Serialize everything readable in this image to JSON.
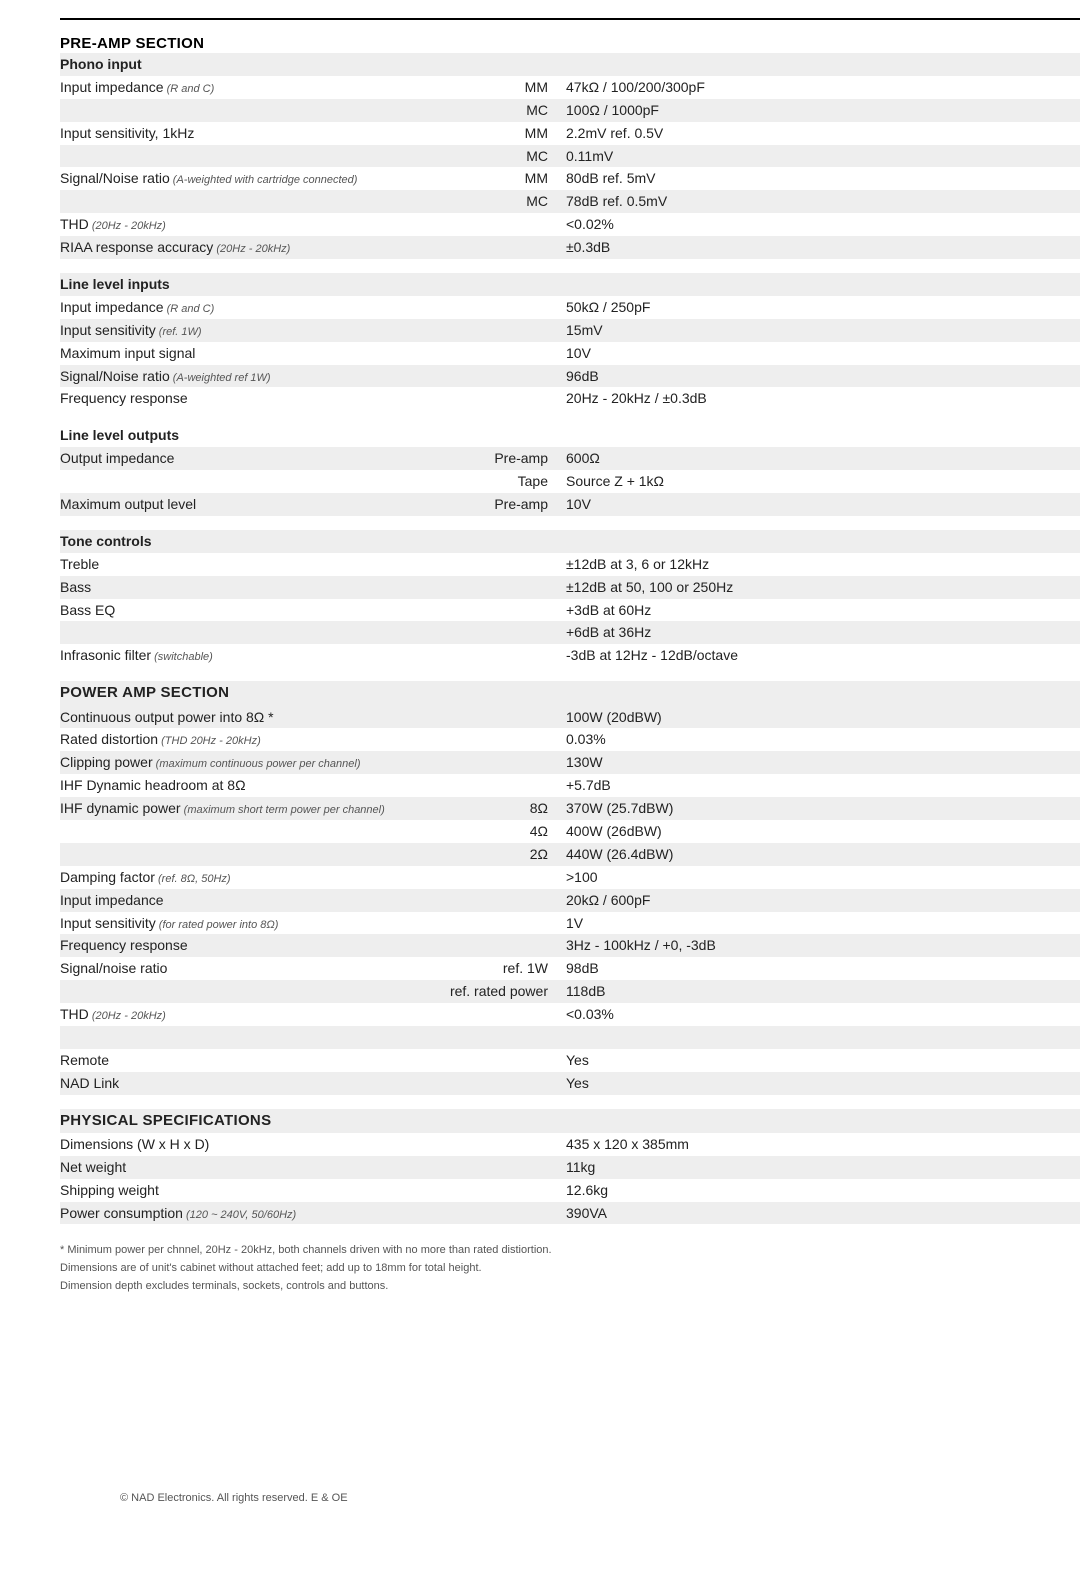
{
  "layout": {
    "page_bg": "#ffffff",
    "shade_bg": "#eeeeee",
    "col_label_width": 360,
    "col_mid_width": 140,
    "body_fontsize": 14,
    "header_fontsize": 15,
    "footnote_fontsize": 11,
    "text_color": "#333333",
    "muted_color": "#555555"
  },
  "preamp": {
    "title": "PRE-AMP SECTION",
    "phono": {
      "title": "Phono input",
      "rows": [
        {
          "label": "Input impedance",
          "note": "(R and C)",
          "mid": "MM",
          "val": "47kΩ / 100/200/300pF",
          "shade": false
        },
        {
          "label": "",
          "mid": "MC",
          "val": "100Ω / 1000pF",
          "shade": true
        },
        {
          "label": "Input sensitivity, 1kHz",
          "mid": "MM",
          "val": "2.2mV ref. 0.5V",
          "shade": false
        },
        {
          "label": "",
          "mid": "MC",
          "val": "0.11mV",
          "shade": true
        },
        {
          "label": "Signal/Noise ratio",
          "note": "(A-weighted with cartridge connected)",
          "mid": "MM",
          "val": "80dB ref. 5mV",
          "shade": false
        },
        {
          "label": "",
          "mid": "MC",
          "val": "78dB ref. 0.5mV",
          "shade": true
        },
        {
          "label": "THD",
          "note": "(20Hz - 20kHz)",
          "mid": "",
          "val": "<0.02%",
          "shade": false
        },
        {
          "label": "RIAA response accuracy",
          "note": "(20Hz - 20kHz)",
          "mid": "",
          "val": "±0.3dB",
          "shade": true
        }
      ]
    },
    "line_in": {
      "title": "Line level inputs",
      "rows": [
        {
          "label": "Input impedance",
          "note": "(R and C)",
          "mid": "",
          "val": "50kΩ / 250pF",
          "shade": false
        },
        {
          "label": "Input sensitivity",
          "note": "(ref. 1W)",
          "mid": "",
          "val": "15mV",
          "shade": true
        },
        {
          "label": "Maximum input signal",
          "mid": "",
          "val": "10V",
          "shade": false
        },
        {
          "label": "Signal/Noise ratio",
          "note": "(A-weighted ref 1W)",
          "mid": "",
          "val": "96dB",
          "shade": true
        },
        {
          "label": "Frequency response",
          "mid": "",
          "val": "20Hz - 20kHz / ±0.3dB",
          "shade": false
        }
      ]
    },
    "line_out": {
      "title": "Line level outputs",
      "rows": [
        {
          "label": "Output impedance",
          "mid": "Pre-amp",
          "val": "600Ω",
          "shade": true
        },
        {
          "label": "",
          "mid": "Tape",
          "val": "Source Z + 1kΩ",
          "shade": false
        },
        {
          "label": "Maximum output level",
          "mid": "Pre-amp",
          "val": "10V",
          "shade": true
        }
      ]
    },
    "tone": {
      "title": "Tone controls",
      "rows": [
        {
          "label": "Treble",
          "mid": "",
          "val": "±12dB at 3, 6 or 12kHz",
          "shade": false
        },
        {
          "label": "Bass",
          "mid": "",
          "val": "±12dB at 50, 100 or 250Hz",
          "shade": true
        },
        {
          "label": "Bass EQ",
          "mid": "",
          "val": "+3dB at 60Hz",
          "shade": false
        },
        {
          "label": "",
          "mid": "",
          "val": "+6dB at 36Hz",
          "shade": true
        },
        {
          "label": "Infrasonic filter",
          "note": "(switchable)",
          "mid": "",
          "val": "-3dB at 12Hz - 12dB/octave",
          "shade": false
        }
      ]
    }
  },
  "power": {
    "title": "POWER AMP SECTION",
    "rows": [
      {
        "label": "Continuous output power into 8Ω *",
        "mid": "",
        "val": "100W (20dBW)",
        "shade": true
      },
      {
        "label": "Rated distortion",
        "note": "(THD 20Hz - 20kHz)",
        "mid": "",
        "val": "0.03%",
        "shade": false
      },
      {
        "label": "Clipping power",
        "note": "(maximum continuous power per channel)",
        "mid": "",
        "val": "130W",
        "shade": true
      },
      {
        "label": "IHF Dynamic headroom at 8Ω",
        "mid": "",
        "val": "+5.7dB",
        "shade": false
      },
      {
        "label": "IHF dynamic power",
        "note": "(maximum short term power per channel)",
        "mid": "8Ω",
        "val": "370W (25.7dBW)",
        "shade": true
      },
      {
        "label": "",
        "mid": "4Ω",
        "val": "400W (26dBW)",
        "shade": false
      },
      {
        "label": "",
        "mid": "2Ω",
        "val": "440W (26.4dBW)",
        "shade": true
      },
      {
        "label": "Damping factor",
        "note": "(ref. 8Ω, 50Hz)",
        "mid": "",
        "val": ">100",
        "shade": false
      },
      {
        "label": "Input impedance",
        "mid": "",
        "val": "20kΩ / 600pF",
        "shade": true
      },
      {
        "label": "Input sensitivity",
        "note": "(for rated power into 8Ω)",
        "mid": "",
        "val": "1V",
        "shade": false
      },
      {
        "label": "Frequency response",
        "mid": "",
        "val": "3Hz - 100kHz / +0, -3dB",
        "shade": true
      },
      {
        "label": "Signal/noise ratio",
        "mid": "ref. 1W",
        "val": "98dB",
        "shade": false
      },
      {
        "label": "",
        "mid": "ref. rated power",
        "val": "118dB",
        "shade": true
      },
      {
        "label": "THD",
        "note": "(20Hz - 20kHz)",
        "mid": "",
        "val": "<0.03%",
        "shade": false
      }
    ],
    "extras": [
      {
        "label": "Remote",
        "mid": "",
        "val": "Yes",
        "shade": false
      },
      {
        "label": "NAD Link",
        "mid": "",
        "val": "Yes",
        "shade": true
      }
    ]
  },
  "physical": {
    "title": "PHYSICAL SPECIFICATIONS",
    "rows": [
      {
        "label": "Dimensions (W x H x D)",
        "mid": "",
        "val": "435 x 120 x 385mm",
        "shade": false
      },
      {
        "label": "Net weight",
        "mid": "",
        "val": "11kg",
        "shade": true
      },
      {
        "label": "Shipping weight",
        "mid": "",
        "val": "12.6kg",
        "shade": false
      },
      {
        "label": "Power consumption",
        "note": "(120 ~ 240V, 50/60Hz)",
        "mid": "",
        "val": "390VA",
        "shade": true
      }
    ]
  },
  "footnotes": {
    "f1": "* Minimum power per chnnel, 20Hz - 20kHz, both channels driven with no more than rated distiortion.",
    "f2": "Dimensions are of unit's cabinet without attached feet; add up to 18mm for total height.",
    "f3": "Dimension depth excludes terminals, sockets, controls and buttons."
  },
  "copyright": "© NAD Electronics. All rights reserved. E & OE"
}
